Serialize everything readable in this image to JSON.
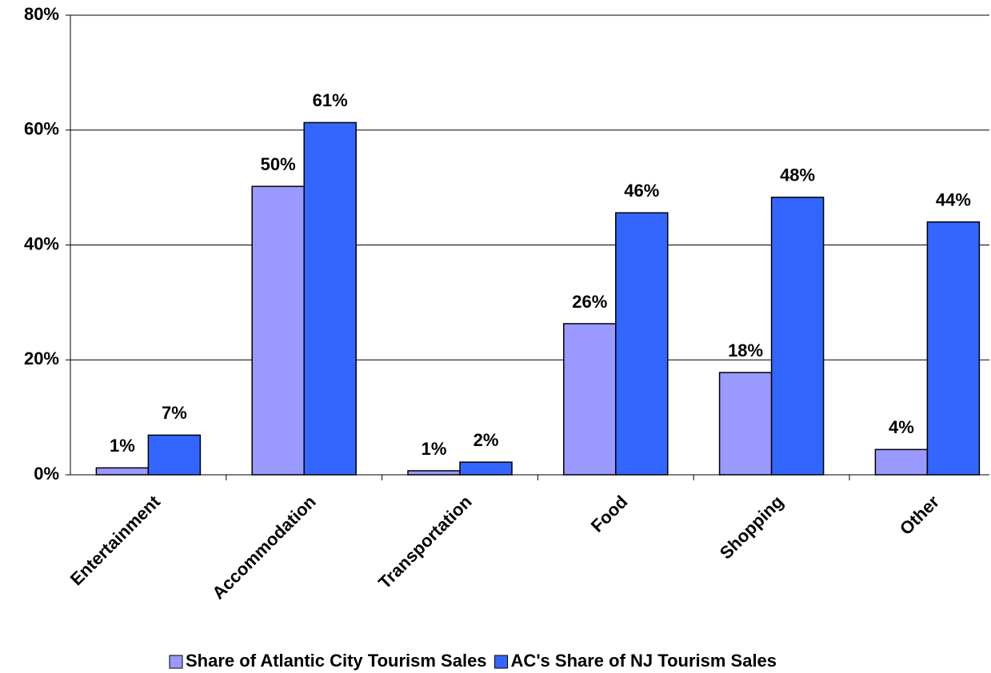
{
  "chart_data": {
    "type": "bar",
    "categories": [
      "Entertainment",
      "Accommodation",
      "Transportation",
      "Food",
      "Shopping",
      "Other"
    ],
    "series": [
      {
        "name": "Share of Atlantic City Tourism Sales",
        "color": "#9999ff",
        "values": [
          1.2,
          50.2,
          0.7,
          26.3,
          17.8,
          4.4
        ],
        "value_labels": [
          "1%",
          "50%",
          "1%",
          "26%",
          "18%",
          "4%"
        ]
      },
      {
        "name": "AC's Share of NJ Tourism Sales",
        "color": "#3366ff",
        "values": [
          6.9,
          61.3,
          2.2,
          45.6,
          48.3,
          44
        ],
        "value_labels": [
          "7%",
          "61%",
          "2%",
          "46%",
          "48%",
          "44%"
        ]
      }
    ],
    "ylim": [
      0,
      80
    ],
    "yticks": [
      {
        "value": 0,
        "label": "0%"
      },
      {
        "value": 20,
        "label": "20%"
      },
      {
        "value": 40,
        "label": "40%"
      },
      {
        "value": 60,
        "label": "60%"
      },
      {
        "value": 80,
        "label": "80%"
      }
    ],
    "grid": true,
    "legend": "bottom"
  }
}
